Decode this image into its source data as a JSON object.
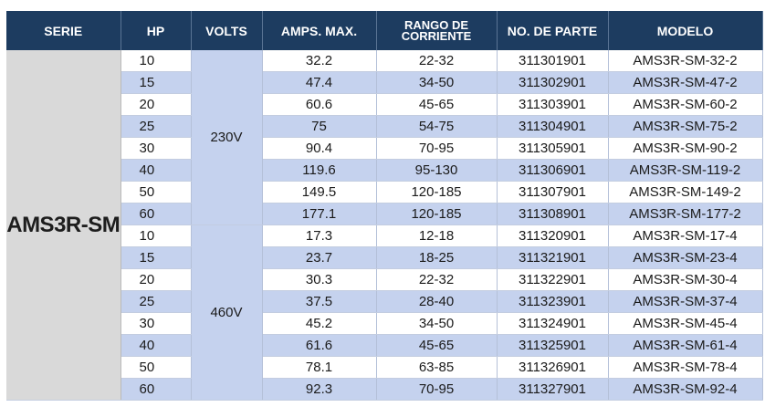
{
  "headers": {
    "serie": "SERIE",
    "hp": "HP",
    "volts": "VOLTS",
    "amps": "AMPS. MAX.",
    "rango_line1": "RANGO DE",
    "rango_line2": "CORRIENTE",
    "parte": "NO. DE PARTE",
    "modelo": "MODELO"
  },
  "serie": "AMS3R-SM",
  "groups": [
    {
      "volts": "230V",
      "rows": [
        {
          "hp": "10",
          "amps": "32.2",
          "rango": "22-32",
          "parte": "311301901",
          "modelo": "AMS3R-SM-32-2"
        },
        {
          "hp": "15",
          "amps": "47.4",
          "rango": "34-50",
          "parte": "311302901",
          "modelo": "AMS3R-SM-47-2"
        },
        {
          "hp": "20",
          "amps": "60.6",
          "rango": "45-65",
          "parte": "311303901",
          "modelo": "AMS3R-SM-60-2"
        },
        {
          "hp": "25",
          "amps": "75",
          "rango": "54-75",
          "parte": "311304901",
          "modelo": "AMS3R-SM-75-2"
        },
        {
          "hp": "30",
          "amps": "90.4",
          "rango": "70-95",
          "parte": "311305901",
          "modelo": "AMS3R-SM-90-2"
        },
        {
          "hp": "40",
          "amps": "119.6",
          "rango": "95-130",
          "parte": "311306901",
          "modelo": "AMS3R-SM-119-2"
        },
        {
          "hp": "50",
          "amps": "149.5",
          "rango": "120-185",
          "parte": "311307901",
          "modelo": "AMS3R-SM-149-2"
        },
        {
          "hp": "60",
          "amps": "177.1",
          "rango": "120-185",
          "parte": "311308901",
          "modelo": "AMS3R-SM-177-2"
        }
      ]
    },
    {
      "volts": "460V",
      "rows": [
        {
          "hp": "10",
          "amps": "17.3",
          "rango": "12-18",
          "parte": "311320901",
          "modelo": "AMS3R-SM-17-4"
        },
        {
          "hp": "15",
          "amps": "23.7",
          "rango": "18-25",
          "parte": "311321901",
          "modelo": "AMS3R-SM-23-4"
        },
        {
          "hp": "20",
          "amps": "30.3",
          "rango": "22-32",
          "parte": "311322901",
          "modelo": "AMS3R-SM-30-4"
        },
        {
          "hp": "25",
          "amps": "37.5",
          "rango": "28-40",
          "parte": "311323901",
          "modelo": "AMS3R-SM-37-4"
        },
        {
          "hp": "30",
          "amps": "45.2",
          "rango": "34-50",
          "parte": "311324901",
          "modelo": "AMS3R-SM-45-4"
        },
        {
          "hp": "40",
          "amps": "61.6",
          "rango": "45-65",
          "parte": "311325901",
          "modelo": "AMS3R-SM-61-4"
        },
        {
          "hp": "50",
          "amps": "78.1",
          "rango": "63-85",
          "parte": "311326901",
          "modelo": "AMS3R-SM-78-4"
        },
        {
          "hp": "60",
          "amps": "92.3",
          "rango": "70-95",
          "parte": "311327901",
          "modelo": "AMS3R-SM-92-4"
        }
      ]
    }
  ],
  "colors": {
    "header_bg": "#1d3c60",
    "row_stripe": "#c5d2ee",
    "serie_bg": "#d9d9d9"
  }
}
